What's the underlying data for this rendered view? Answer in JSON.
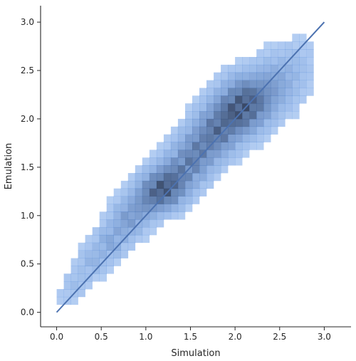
{
  "chart_data": {
    "type": "heatmap",
    "subtype": "2d-histogram-with-identity-line",
    "xlabel": "Simulation",
    "ylabel": "Emulation",
    "xlim": [
      -0.18,
      3.3
    ],
    "ylim": [
      -0.15,
      3.17
    ],
    "xticks": [
      "0.0",
      "0.5",
      "1.0",
      "1.5",
      "2.0",
      "2.5",
      "3.0"
    ],
    "yticks": [
      "0.0",
      "0.5",
      "1.0",
      "1.5",
      "2.0",
      "2.5",
      "3.0"
    ],
    "bin_width": 0.08,
    "colors": {
      "cell_base": "#3b7ddd",
      "cell_peak": "#2b3a59",
      "line": "#4c72b0",
      "axis": "#262626"
    },
    "reference_line": {
      "x": [
        0.0,
        3.0
      ],
      "y": [
        0.0,
        3.0
      ]
    },
    "density": [
      {
        "x": 0.1,
        "y": 0.16,
        "count": 2
      },
      {
        "x": 0.2,
        "y": 0.28,
        "count": 3
      },
      {
        "x": 0.3,
        "y": 0.4,
        "count": 3
      },
      {
        "x": 0.4,
        "y": 0.52,
        "count": 4
      },
      {
        "x": 0.5,
        "y": 0.62,
        "count": 4
      },
      {
        "x": 0.6,
        "y": 0.72,
        "count": 5
      },
      {
        "x": 0.7,
        "y": 0.84,
        "count": 5
      },
      {
        "x": 0.8,
        "y": 0.96,
        "count": 6
      },
      {
        "x": 0.9,
        "y": 1.06,
        "count": 6
      },
      {
        "x": 1.0,
        "y": 1.14,
        "count": 7
      },
      {
        "x": 1.1,
        "y": 1.22,
        "count": 9
      },
      {
        "x": 1.2,
        "y": 1.28,
        "count": 10
      },
      {
        "x": 1.3,
        "y": 1.36,
        "count": 9
      },
      {
        "x": 1.4,
        "y": 1.46,
        "count": 8
      },
      {
        "x": 1.5,
        "y": 1.56,
        "count": 8
      },
      {
        "x": 1.6,
        "y": 1.68,
        "count": 8
      },
      {
        "x": 1.7,
        "y": 1.78,
        "count": 8
      },
      {
        "x": 1.8,
        "y": 1.88,
        "count": 9
      },
      {
        "x": 1.9,
        "y": 1.98,
        "count": 9
      },
      {
        "x": 2.0,
        "y": 2.06,
        "count": 10
      },
      {
        "x": 2.1,
        "y": 2.14,
        "count": 10
      },
      {
        "x": 2.2,
        "y": 2.22,
        "count": 9
      },
      {
        "x": 2.3,
        "y": 2.28,
        "count": 7
      },
      {
        "x": 2.4,
        "y": 2.34,
        "count": 6
      },
      {
        "x": 2.5,
        "y": 2.42,
        "count": 5
      },
      {
        "x": 2.6,
        "y": 2.5,
        "count": 4
      },
      {
        "x": 2.7,
        "y": 2.6,
        "count": 3
      },
      {
        "x": 2.8,
        "y": 2.7,
        "count": 2
      }
    ]
  }
}
